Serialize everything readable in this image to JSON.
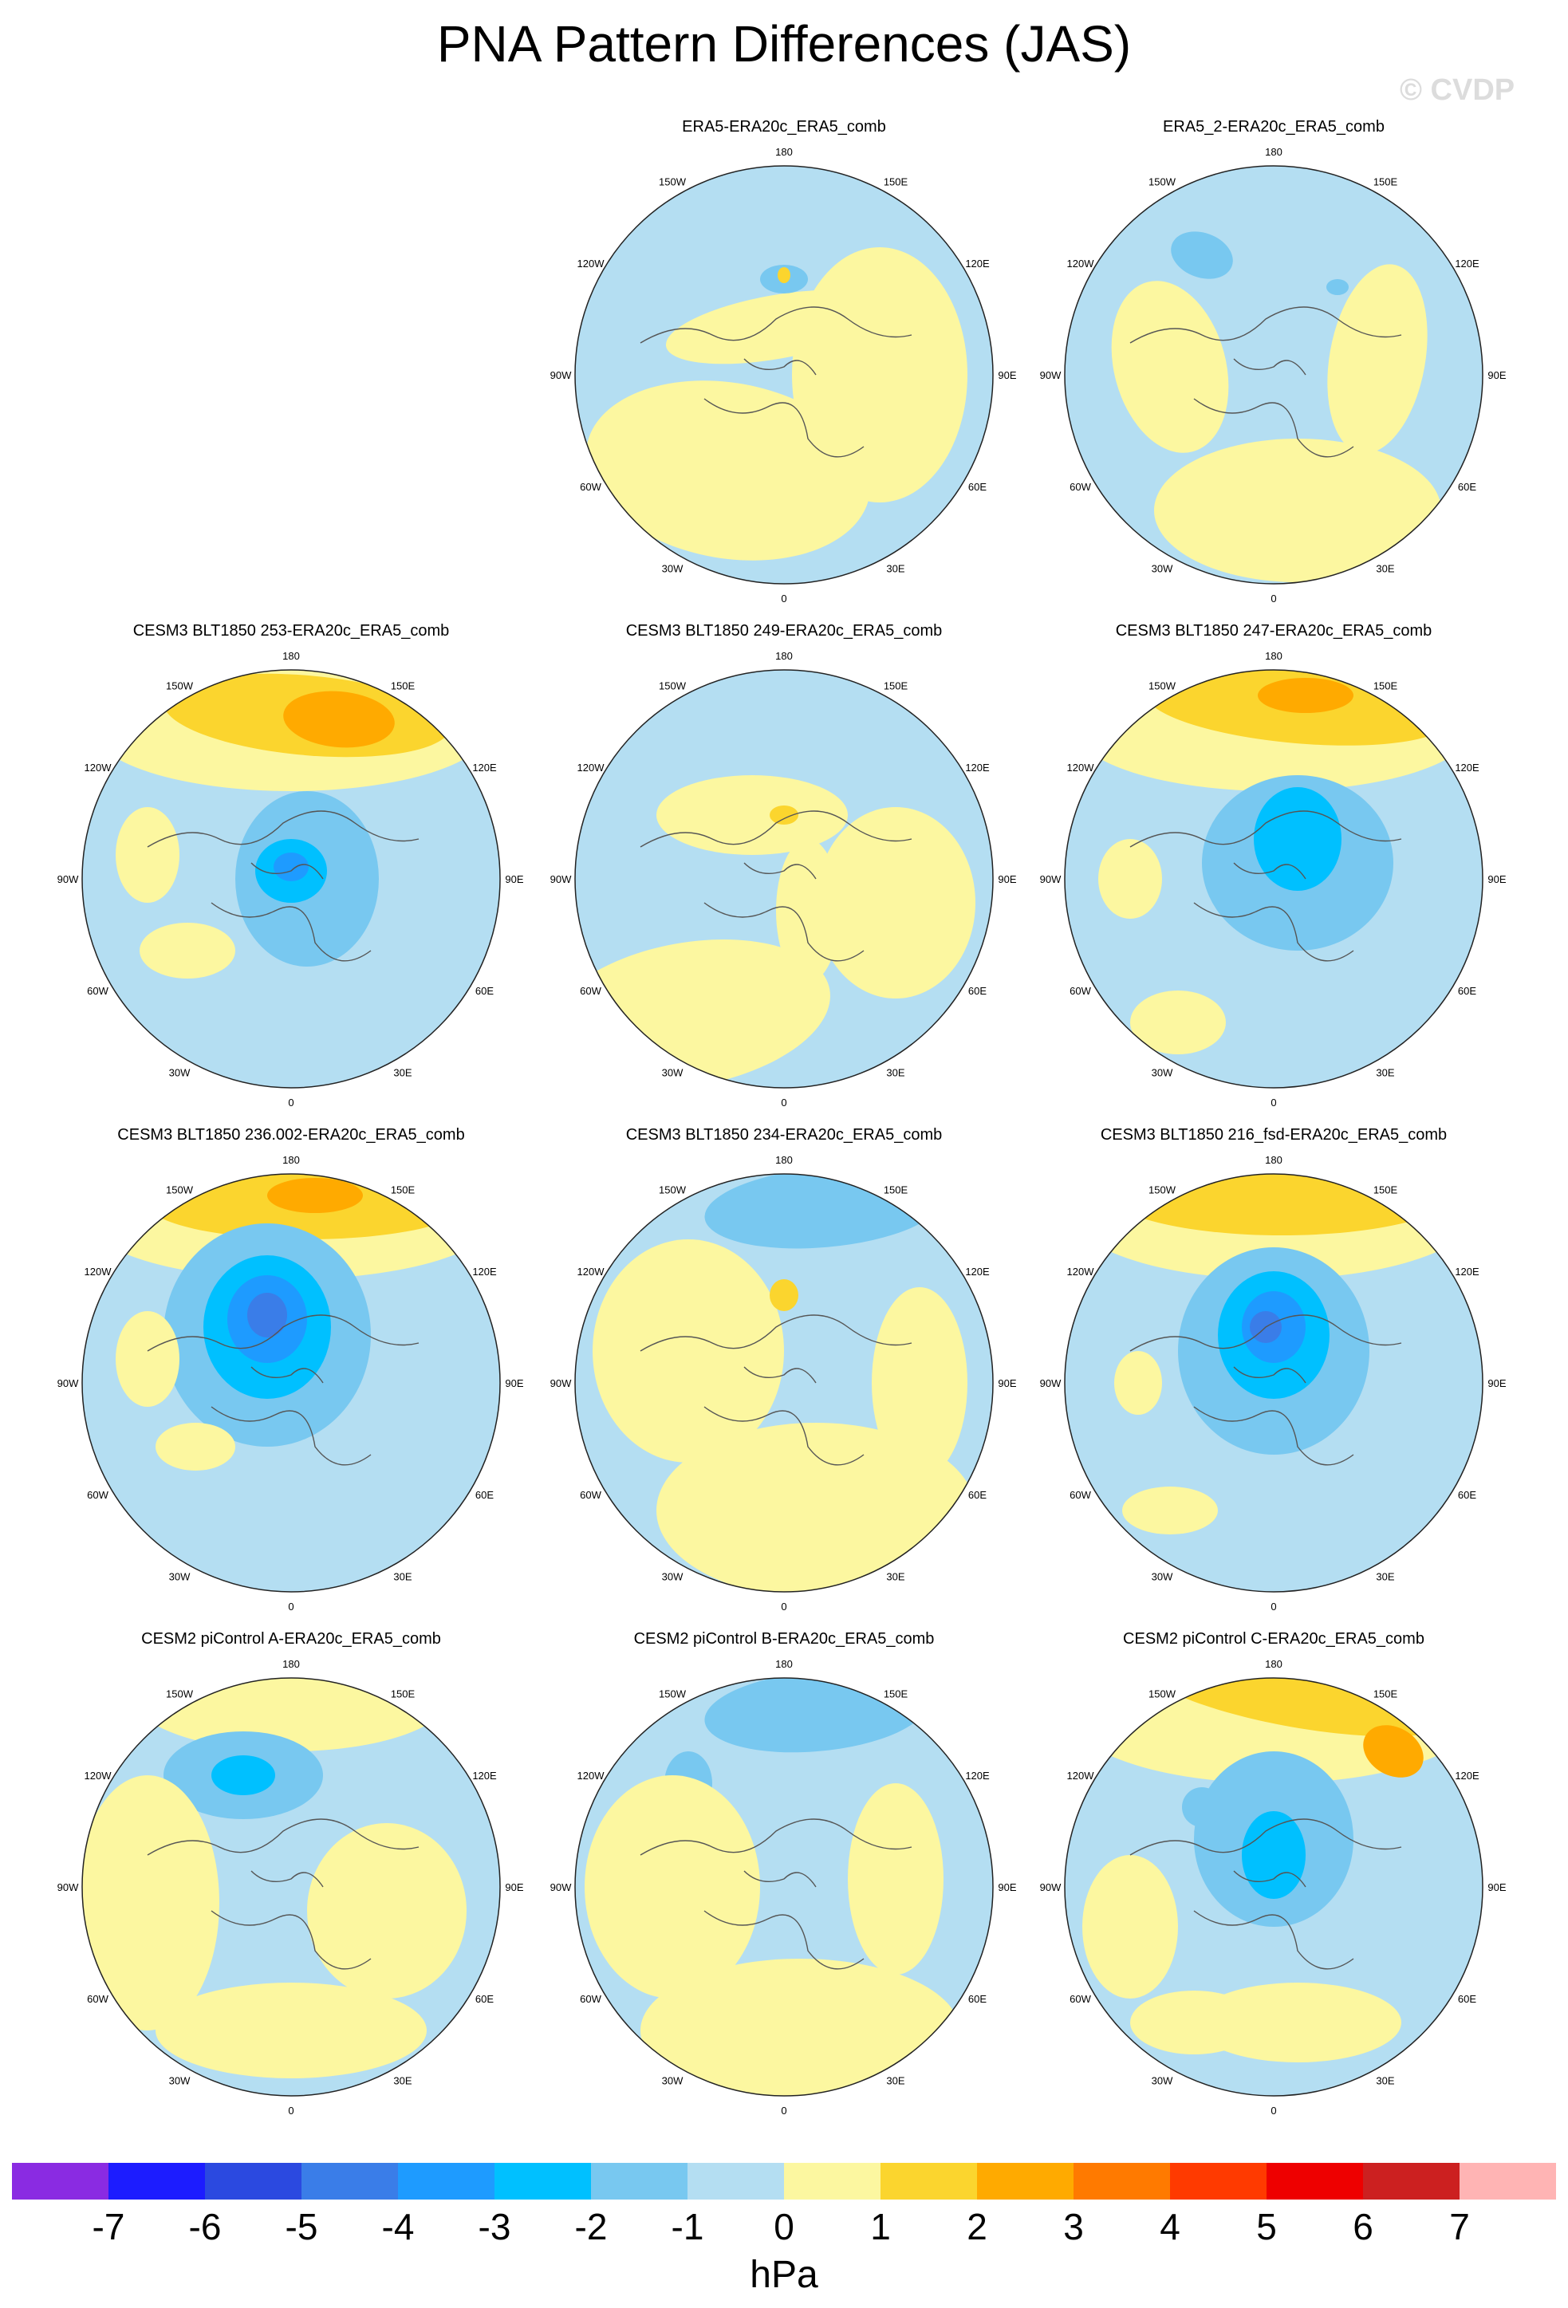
{
  "figure": {
    "title": "PNA Pattern Differences (JAS)",
    "watermark": "© CVDP",
    "units": "hPa"
  },
  "lon_labels": [
    "180",
    "150E",
    "120E",
    "90E",
    "60E",
    "30E",
    "0",
    "30W",
    "60W",
    "90W",
    "120W",
    "150W"
  ],
  "colorbar": {
    "levels": [
      "-7",
      "-6",
      "-5",
      "-4",
      "-3",
      "-2",
      "-1",
      "0",
      "1",
      "2",
      "3",
      "4",
      "5",
      "6",
      "7"
    ],
    "colors": [
      "#8a2be2",
      "#1c1cff",
      "#2b49e0",
      "#3a7de8",
      "#1e9bff",
      "#00c0ff",
      "#78c8f0",
      "#b4def2",
      "#fcf7a0",
      "#fbd52e",
      "#ffaa00",
      "#ff7a00",
      "#ff3a00",
      "#ee0000",
      "#cc2020",
      "#ffb4b4"
    ]
  },
  "colors": {
    "neg1": "#b4def2",
    "neg2": "#78c8f0",
    "neg3": "#00c0ff",
    "neg4": "#1e9bff",
    "neg5": "#3a7de8",
    "pos1": "#fcf7a0",
    "pos2": "#fbd52e",
    "pos3": "#ffaa00"
  },
  "chart_data": {
    "type": "map",
    "projection": "north polar stereographic",
    "variable": "PNA pattern difference",
    "season": "JAS",
    "units": "hPa",
    "panels": [
      {
        "title": "ERA5-ERA20c_ERA5_comb",
        "row": 1,
        "col": 2,
        "min_level": -1,
        "max_level": 2
      },
      {
        "title": "ERA5_2-ERA20c_ERA5_comb",
        "row": 1,
        "col": 3,
        "min_level": -2,
        "max_level": 1
      },
      {
        "title": "CESM3 BLT1850 253-ERA20c_ERA5_comb",
        "row": 2,
        "col": 1,
        "min_level": -4,
        "max_level": 3
      },
      {
        "title": "CESM3 BLT1850 249-ERA20c_ERA5_comb",
        "row": 2,
        "col": 2,
        "min_level": -1,
        "max_level": 2
      },
      {
        "title": "CESM3 BLT1850 247-ERA20c_ERA5_comb",
        "row": 2,
        "col": 3,
        "min_level": -3,
        "max_level": 3
      },
      {
        "title": "CESM3 BLT1850 236.002-ERA20c_ERA5_comb",
        "row": 3,
        "col": 1,
        "min_level": -6,
        "max_level": 3
      },
      {
        "title": "CESM3 BLT1850 234-ERA20c_ERA5_comb",
        "row": 3,
        "col": 2,
        "min_level": -2,
        "max_level": 2
      },
      {
        "title": "CESM3 BLT1850 216_fsd-ERA20c_ERA5_comb",
        "row": 3,
        "col": 3,
        "min_level": -5,
        "max_level": 2
      },
      {
        "title": "CESM2 piControl A-ERA20c_ERA5_comb",
        "row": 4,
        "col": 1,
        "min_level": -3,
        "max_level": 1
      },
      {
        "title": "CESM2 piControl B-ERA20c_ERA5_comb",
        "row": 4,
        "col": 2,
        "min_level": -2,
        "max_level": 1
      },
      {
        "title": "CESM2 piControl C-ERA20c_ERA5_comb",
        "row": 4,
        "col": 3,
        "min_level": -3,
        "max_level": 3
      }
    ]
  }
}
